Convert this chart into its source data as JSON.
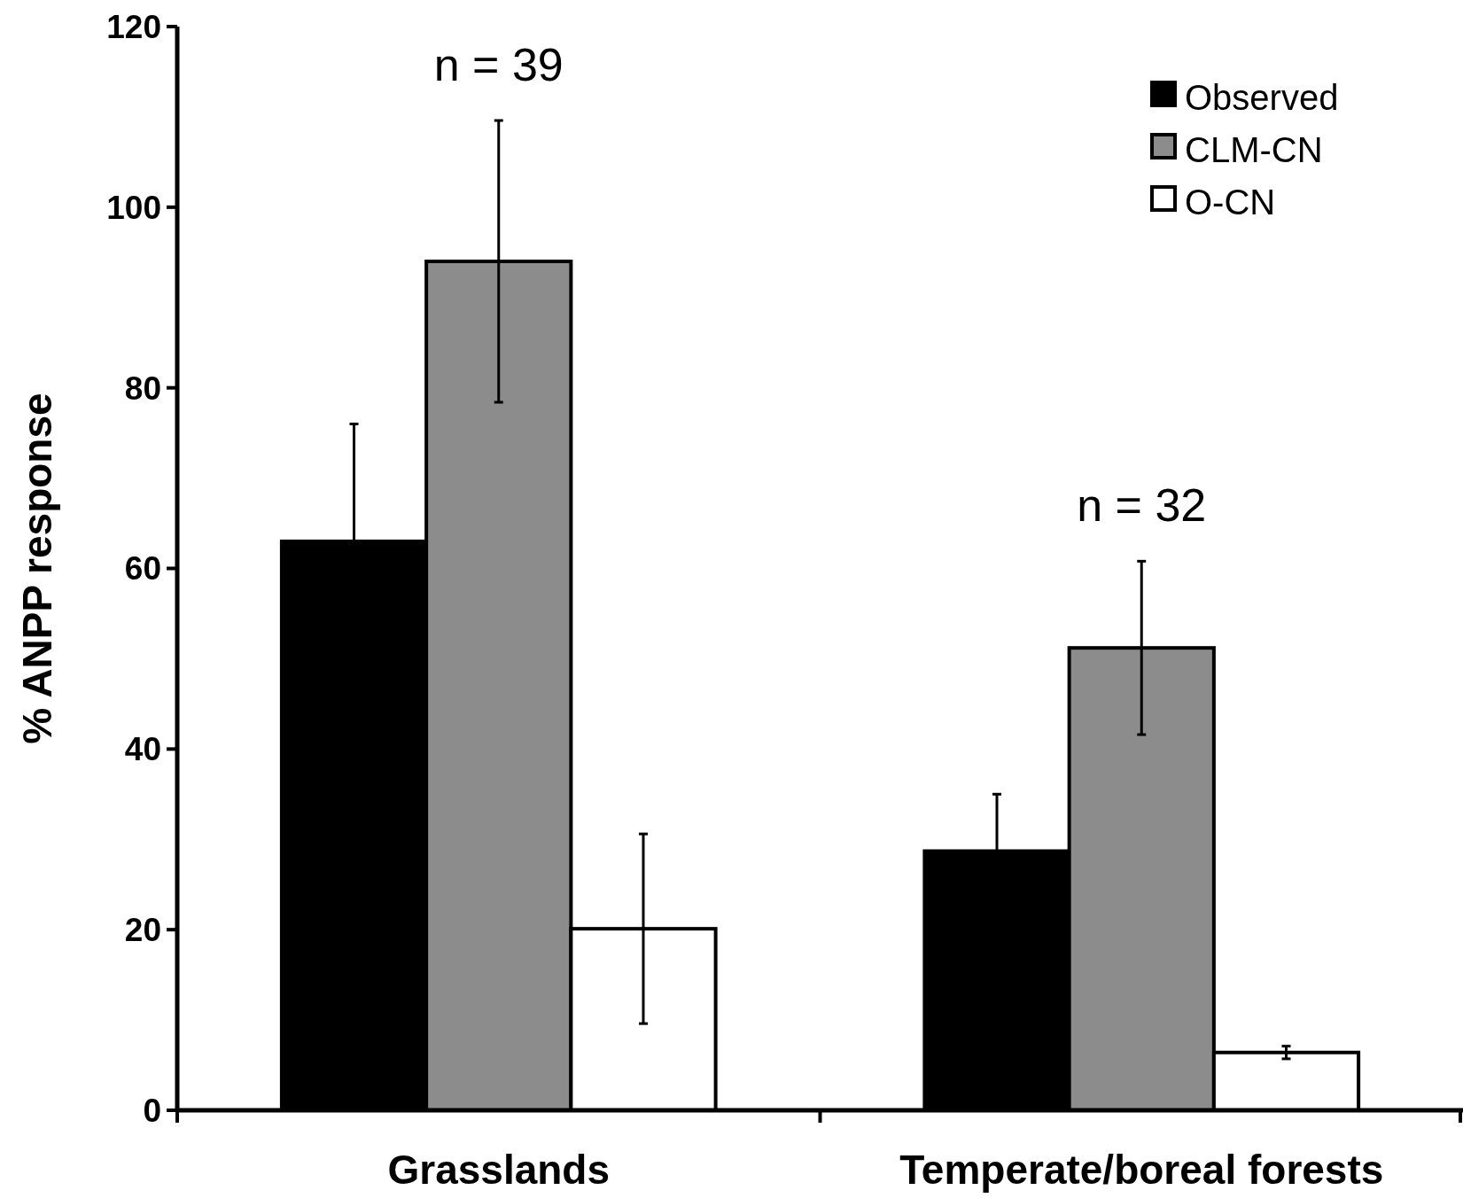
{
  "chart_data": {
    "type": "bar",
    "ylabel": "% ANPP response",
    "categories": [
      "Grasslands",
      "Temperate/boreal forests"
    ],
    "series": [
      {
        "name": "Observed",
        "color": "#000000",
        "values": [
          63,
          28.7
        ],
        "errors": [
          13,
          6.3
        ]
      },
      {
        "name": "CLM-CN",
        "color": "#8c8c8c",
        "values": [
          94,
          51.2
        ],
        "errors": [
          15.6,
          9.6
        ]
      },
      {
        "name": "O-CN",
        "color": "#ffffff",
        "values": [
          20.1,
          6.4
        ],
        "errors": [
          10.5,
          0.7
        ]
      }
    ],
    "ylim": [
      0,
      120
    ],
    "yticks": [
      0,
      20,
      40,
      60,
      80,
      100,
      120
    ],
    "grid": false,
    "legend": "top right",
    "annotations": [
      "n = 39",
      "n = 32"
    ]
  }
}
